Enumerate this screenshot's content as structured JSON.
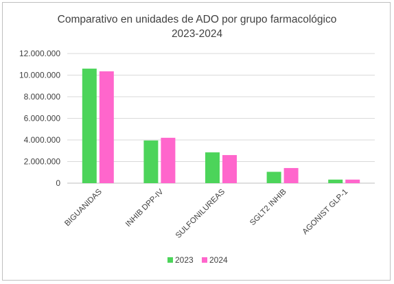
{
  "chart_data": {
    "type": "bar",
    "title": [
      "Comparativo en unidades de ADO por grupo farmacológico",
      "2023-2024"
    ],
    "categories": [
      "BIGUANIDAS",
      "INHIB DPP-IV",
      "SULFONILUREAS",
      "SGLT2 INHIB",
      "AGONIST GLP-1"
    ],
    "series": [
      {
        "name": "2023",
        "color": "#4cd45a",
        "values": [
          10600000,
          3950000,
          2850000,
          1050000,
          330000
        ]
      },
      {
        "name": "2024",
        "color": "#ff66cc",
        "values": [
          10350000,
          4200000,
          2600000,
          1400000,
          330000
        ]
      }
    ],
    "ylim": [
      0,
      12000000
    ],
    "yticks": [
      "0",
      "2.000.000",
      "4.000.000",
      "6.000.000",
      "8.000.000",
      "10.000.000",
      "12.000.000"
    ],
    "ytick_values": [
      0,
      2000000,
      4000000,
      6000000,
      8000000,
      10000000,
      12000000
    ],
    "grid": true,
    "legend_position": "bottom"
  }
}
